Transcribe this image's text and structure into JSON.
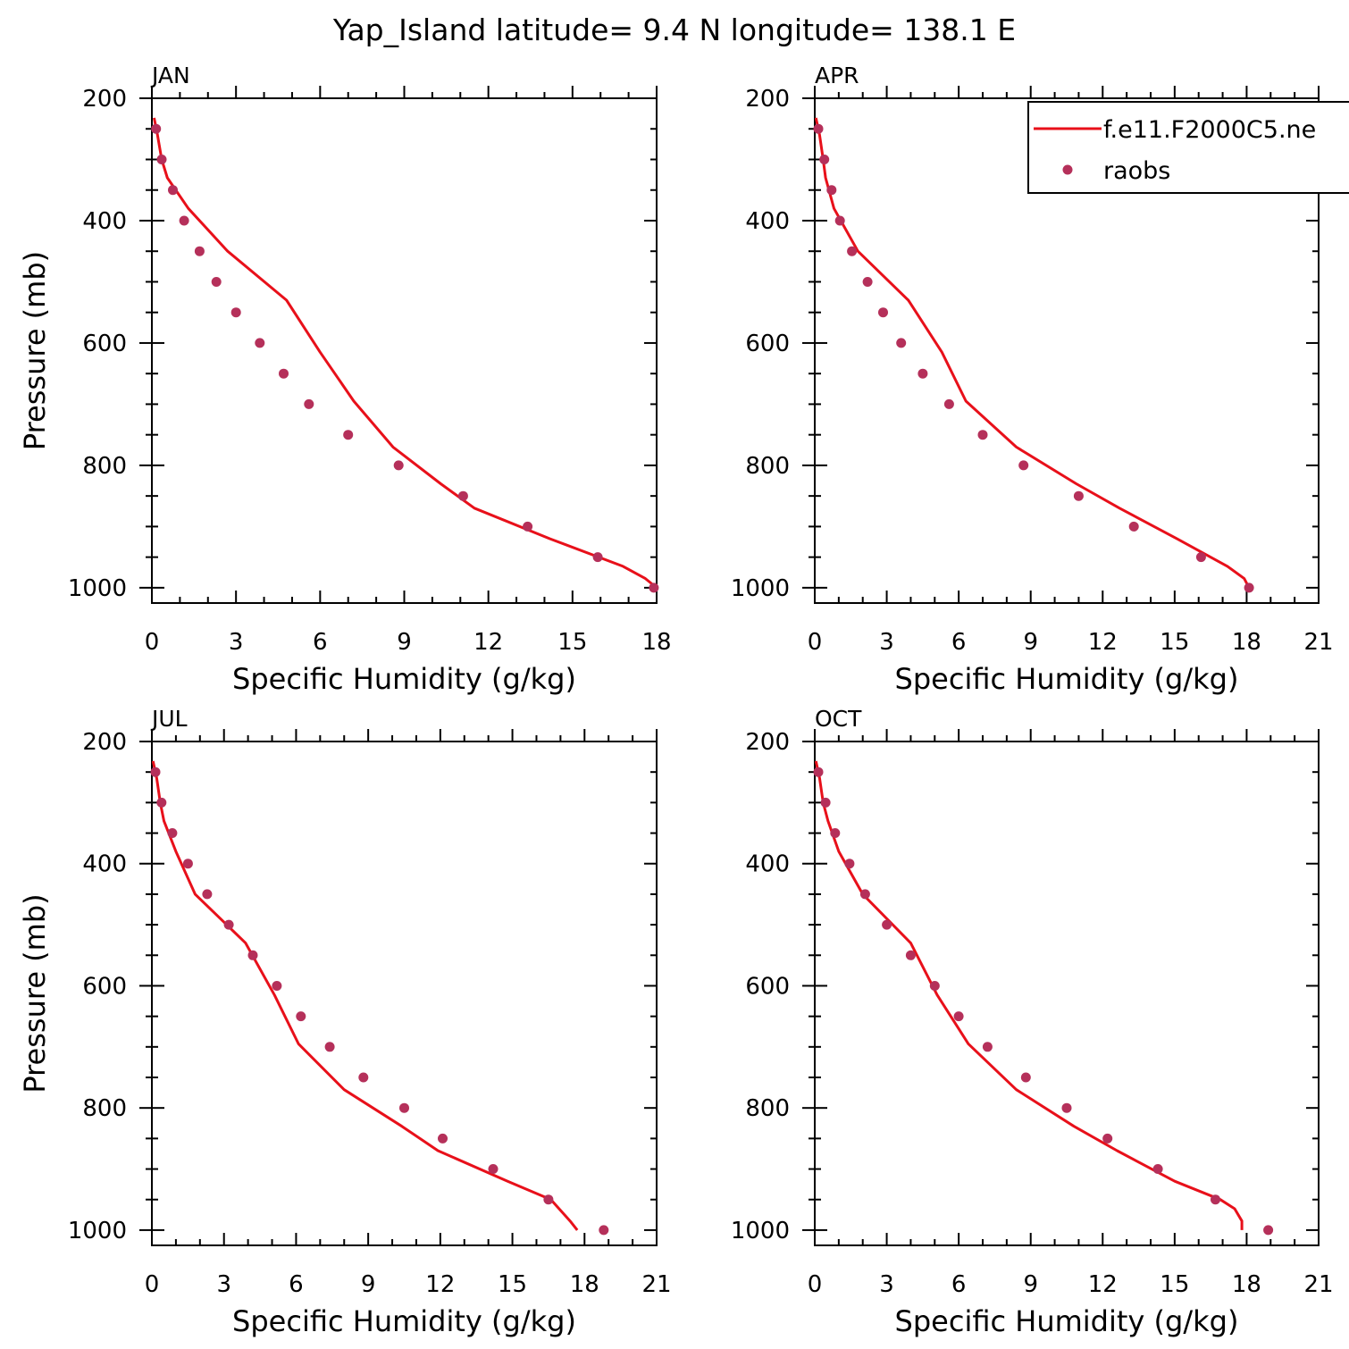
{
  "title": "Yap_Island  latitude= 9.4 N longitude= 138.1 E",
  "colors": {
    "model": "#e8101a",
    "obs": "#b5305a",
    "axis": "#000000"
  },
  "chart_data": [
    {
      "type": "line",
      "panel_label": "JAN",
      "xlabel": "Specific Humidity (g/kg)",
      "ylabel": "Pressure (mb)",
      "xlim": [
        0,
        18
      ],
      "xticks": [
        0,
        3,
        6,
        9,
        12,
        15,
        18
      ],
      "ylim": [
        1025,
        200
      ],
      "yticks": [
        200,
        400,
        600,
        800,
        1000
      ],
      "series": [
        {
          "kind": "line",
          "points": [
            [
              0.08,
              232
            ],
            [
              0.2,
              260
            ],
            [
              0.35,
              300
            ],
            [
              0.55,
              330
            ],
            [
              1.3,
              380
            ],
            [
              2.7,
              450
            ],
            [
              4.8,
              530
            ],
            [
              6.0,
              615
            ],
            [
              7.2,
              695
            ],
            [
              8.6,
              770
            ],
            [
              10.3,
              830
            ],
            [
              11.5,
              870
            ],
            [
              14.2,
              920
            ],
            [
              16.8,
              965
            ],
            [
              17.6,
              985
            ],
            [
              18.0,
              1000
            ]
          ]
        },
        {
          "kind": "scatter",
          "points": [
            [
              0.15,
              250
            ],
            [
              0.35,
              300
            ],
            [
              0.75,
              350
            ],
            [
              1.15,
              400
            ],
            [
              1.7,
              450
            ],
            [
              2.3,
              500
            ],
            [
              3.0,
              550
            ],
            [
              3.85,
              600
            ],
            [
              4.7,
              650
            ],
            [
              5.6,
              700
            ],
            [
              7.0,
              750
            ],
            [
              8.8,
              800
            ],
            [
              11.1,
              850
            ],
            [
              13.4,
              900
            ],
            [
              15.9,
              950
            ],
            [
              17.9,
              1000
            ]
          ]
        }
      ]
    },
    {
      "type": "line",
      "panel_label": "APR",
      "xlabel": "Specific Humidity (g/kg)",
      "ylabel": "",
      "xlim": [
        0,
        21
      ],
      "xticks": [
        0,
        3,
        6,
        9,
        12,
        15,
        18,
        21
      ],
      "ylim": [
        1025,
        200
      ],
      "yticks": [
        200,
        400,
        600,
        800,
        1000
      ],
      "legend": {
        "placement": "top-right",
        "entries": [
          {
            "name": "f.e11.F2000C5.ne",
            "kind": "line"
          },
          {
            "name": "raobs",
            "kind": "scatter"
          }
        ]
      },
      "series": [
        {
          "kind": "line",
          "points": [
            [
              0.05,
              232
            ],
            [
              0.2,
              260
            ],
            [
              0.35,
              300
            ],
            [
              0.45,
              330
            ],
            [
              0.8,
              380
            ],
            [
              1.8,
              450
            ],
            [
              3.9,
              530
            ],
            [
              5.3,
              615
            ],
            [
              6.3,
              695
            ],
            [
              8.4,
              770
            ],
            [
              10.9,
              830
            ],
            [
              12.7,
              870
            ],
            [
              15.1,
              920
            ],
            [
              17.2,
              965
            ],
            [
              17.9,
              985
            ],
            [
              18.1,
              1000
            ]
          ]
        },
        {
          "kind": "scatter",
          "points": [
            [
              0.15,
              250
            ],
            [
              0.4,
              300
            ],
            [
              0.7,
              350
            ],
            [
              1.05,
              400
            ],
            [
              1.55,
              450
            ],
            [
              2.2,
              500
            ],
            [
              2.85,
              550
            ],
            [
              3.6,
              600
            ],
            [
              4.5,
              650
            ],
            [
              5.6,
              700
            ],
            [
              7.0,
              750
            ],
            [
              8.7,
              800
            ],
            [
              11.0,
              850
            ],
            [
              13.3,
              900
            ],
            [
              16.1,
              950
            ],
            [
              18.1,
              1000
            ]
          ]
        }
      ]
    },
    {
      "type": "line",
      "panel_label": "JUL",
      "xlabel": "Specific Humidity (g/kg)",
      "ylabel": "Pressure (mb)",
      "xlim": [
        0,
        21
      ],
      "xticks": [
        0,
        3,
        6,
        9,
        12,
        15,
        18,
        21
      ],
      "ylim": [
        1025,
        200
      ],
      "yticks": [
        200,
        400,
        600,
        800,
        1000
      ],
      "series": [
        {
          "kind": "line",
          "points": [
            [
              0.05,
              232
            ],
            [
              0.2,
              260
            ],
            [
              0.35,
              300
            ],
            [
              0.5,
              330
            ],
            [
              1.0,
              380
            ],
            [
              1.8,
              450
            ],
            [
              3.9,
              530
            ],
            [
              5.1,
              615
            ],
            [
              6.1,
              695
            ],
            [
              8.0,
              770
            ],
            [
              10.4,
              830
            ],
            [
              11.9,
              870
            ],
            [
              14.8,
              920
            ],
            [
              16.6,
              950
            ],
            [
              17.4,
              985
            ],
            [
              17.7,
              1000
            ]
          ]
        },
        {
          "kind": "scatter",
          "points": [
            [
              0.15,
              250
            ],
            [
              0.4,
              300
            ],
            [
              0.85,
              350
            ],
            [
              1.5,
              400
            ],
            [
              2.3,
              450
            ],
            [
              3.2,
              500
            ],
            [
              4.2,
              550
            ],
            [
              5.2,
              600
            ],
            [
              6.2,
              650
            ],
            [
              7.4,
              700
            ],
            [
              8.8,
              750
            ],
            [
              10.5,
              800
            ],
            [
              12.1,
              850
            ],
            [
              14.2,
              900
            ],
            [
              16.5,
              950
            ],
            [
              18.8,
              1000
            ]
          ]
        }
      ]
    },
    {
      "type": "line",
      "panel_label": "OCT",
      "xlabel": "Specific Humidity (g/kg)",
      "ylabel": "",
      "xlim": [
        0,
        21
      ],
      "xticks": [
        0,
        3,
        6,
        9,
        12,
        15,
        18,
        21
      ],
      "ylim": [
        1025,
        200
      ],
      "yticks": [
        200,
        400,
        600,
        800,
        1000
      ],
      "series": [
        {
          "kind": "line",
          "points": [
            [
              0.05,
              232
            ],
            [
              0.2,
              260
            ],
            [
              0.35,
              300
            ],
            [
              0.55,
              330
            ],
            [
              1.0,
              380
            ],
            [
              2.0,
              450
            ],
            [
              4.0,
              530
            ],
            [
              5.1,
              615
            ],
            [
              6.4,
              695
            ],
            [
              8.4,
              770
            ],
            [
              10.8,
              830
            ],
            [
              12.6,
              870
            ],
            [
              15.0,
              920
            ],
            [
              16.9,
              950
            ],
            [
              17.5,
              965
            ],
            [
              17.8,
              985
            ],
            [
              17.8,
              1000
            ]
          ]
        },
        {
          "kind": "scatter",
          "points": [
            [
              0.15,
              250
            ],
            [
              0.45,
              300
            ],
            [
              0.85,
              350
            ],
            [
              1.45,
              400
            ],
            [
              2.1,
              450
            ],
            [
              3.0,
              500
            ],
            [
              4.0,
              550
            ],
            [
              5.0,
              600
            ],
            [
              6.0,
              650
            ],
            [
              7.2,
              700
            ],
            [
              8.8,
              750
            ],
            [
              10.5,
              800
            ],
            [
              12.2,
              850
            ],
            [
              14.3,
              900
            ],
            [
              16.7,
              950
            ],
            [
              18.9,
              1000
            ]
          ]
        }
      ]
    }
  ]
}
